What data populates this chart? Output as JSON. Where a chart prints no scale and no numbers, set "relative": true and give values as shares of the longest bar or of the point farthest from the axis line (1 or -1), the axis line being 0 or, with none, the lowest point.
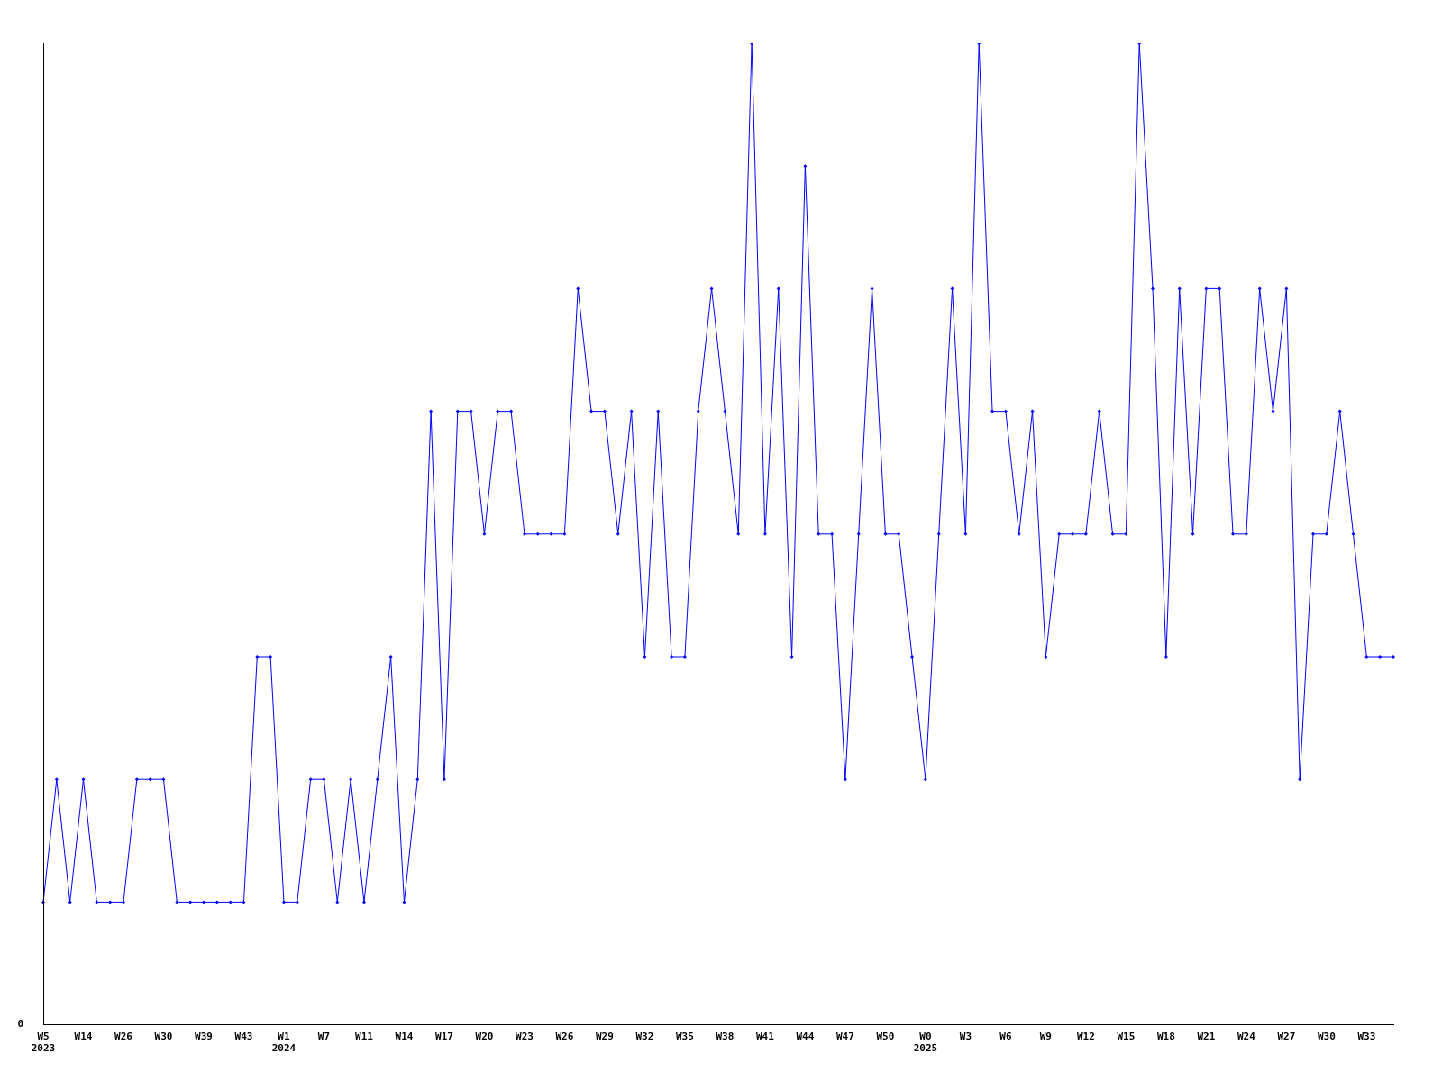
{
  "chart_data": {
    "type": "line",
    "relative": true,
    "categories": [
      "W5\n2023",
      null,
      null,
      "W14",
      null,
      null,
      "W26",
      null,
      null,
      "W30",
      null,
      null,
      "W39",
      null,
      null,
      "W43",
      null,
      null,
      "W1\n2024",
      null,
      null,
      "W7",
      null,
      null,
      "W11",
      null,
      null,
      "W14",
      null,
      null,
      "W17",
      null,
      null,
      "W20",
      null,
      null,
      "W23",
      null,
      null,
      "W26",
      null,
      null,
      "W29",
      null,
      null,
      "W32",
      null,
      null,
      "W35",
      null,
      null,
      "W38",
      null,
      null,
      "W41",
      null,
      null,
      "W44",
      null,
      null,
      "W47",
      null,
      null,
      "W50",
      null,
      null,
      "W0\n2025",
      null,
      null,
      "W3",
      null,
      null,
      "W6",
      null,
      null,
      "W9",
      null,
      null,
      "W12",
      null,
      null,
      "W15",
      null,
      null,
      "W18",
      null,
      null,
      "W21",
      null,
      null,
      "W24",
      null,
      null,
      "W27",
      null,
      null,
      "W30",
      null,
      null,
      "W33",
      null,
      null
    ],
    "series": [
      {
        "color": "#0000ff",
        "values": [
          0.125,
          0.25,
          0.125,
          0.25,
          0.125,
          0.125,
          0.125,
          0.25,
          0.25,
          0.25,
          0.125,
          0.125,
          0.125,
          0.125,
          0.125,
          0.125,
          0.375,
          0.375,
          0.125,
          0.125,
          0.25,
          0.25,
          0.125,
          0.25,
          0.125,
          0.25,
          0.375,
          0.125,
          0.25,
          0.625,
          0.25,
          0.625,
          0.625,
          0.5,
          0.625,
          0.625,
          0.5,
          0.5,
          0.5,
          0.5,
          0.75,
          0.625,
          0.625,
          0.5,
          0.625,
          0.375,
          0.625,
          0.375,
          0.375,
          0.625,
          0.75,
          0.625,
          0.5,
          1,
          0.5,
          0.75,
          0.375,
          0.875,
          0.5,
          0.5,
          0.25,
          0.5,
          0.75,
          0.5,
          0.5,
          0.375,
          0.25,
          0.5,
          0.75,
          0.5,
          1,
          0.625,
          0.625,
          0.5,
          0.625,
          0.375,
          0.5,
          0.5,
          0.5,
          0.625,
          0.5,
          0.5,
          1,
          0.75,
          0.375,
          0.75,
          0.5,
          0.75,
          0.75,
          0.5,
          0.5,
          0.75,
          0.625,
          0.75,
          0.25,
          0.5,
          0.5,
          0.625,
          0.5,
          0.375,
          0.375,
          0.375
        ]
      }
    ],
    "marker": "diamond",
    "line_style": "solid",
    "grid": false,
    "legend": false,
    "annotations": [
      "0"
    ]
  }
}
